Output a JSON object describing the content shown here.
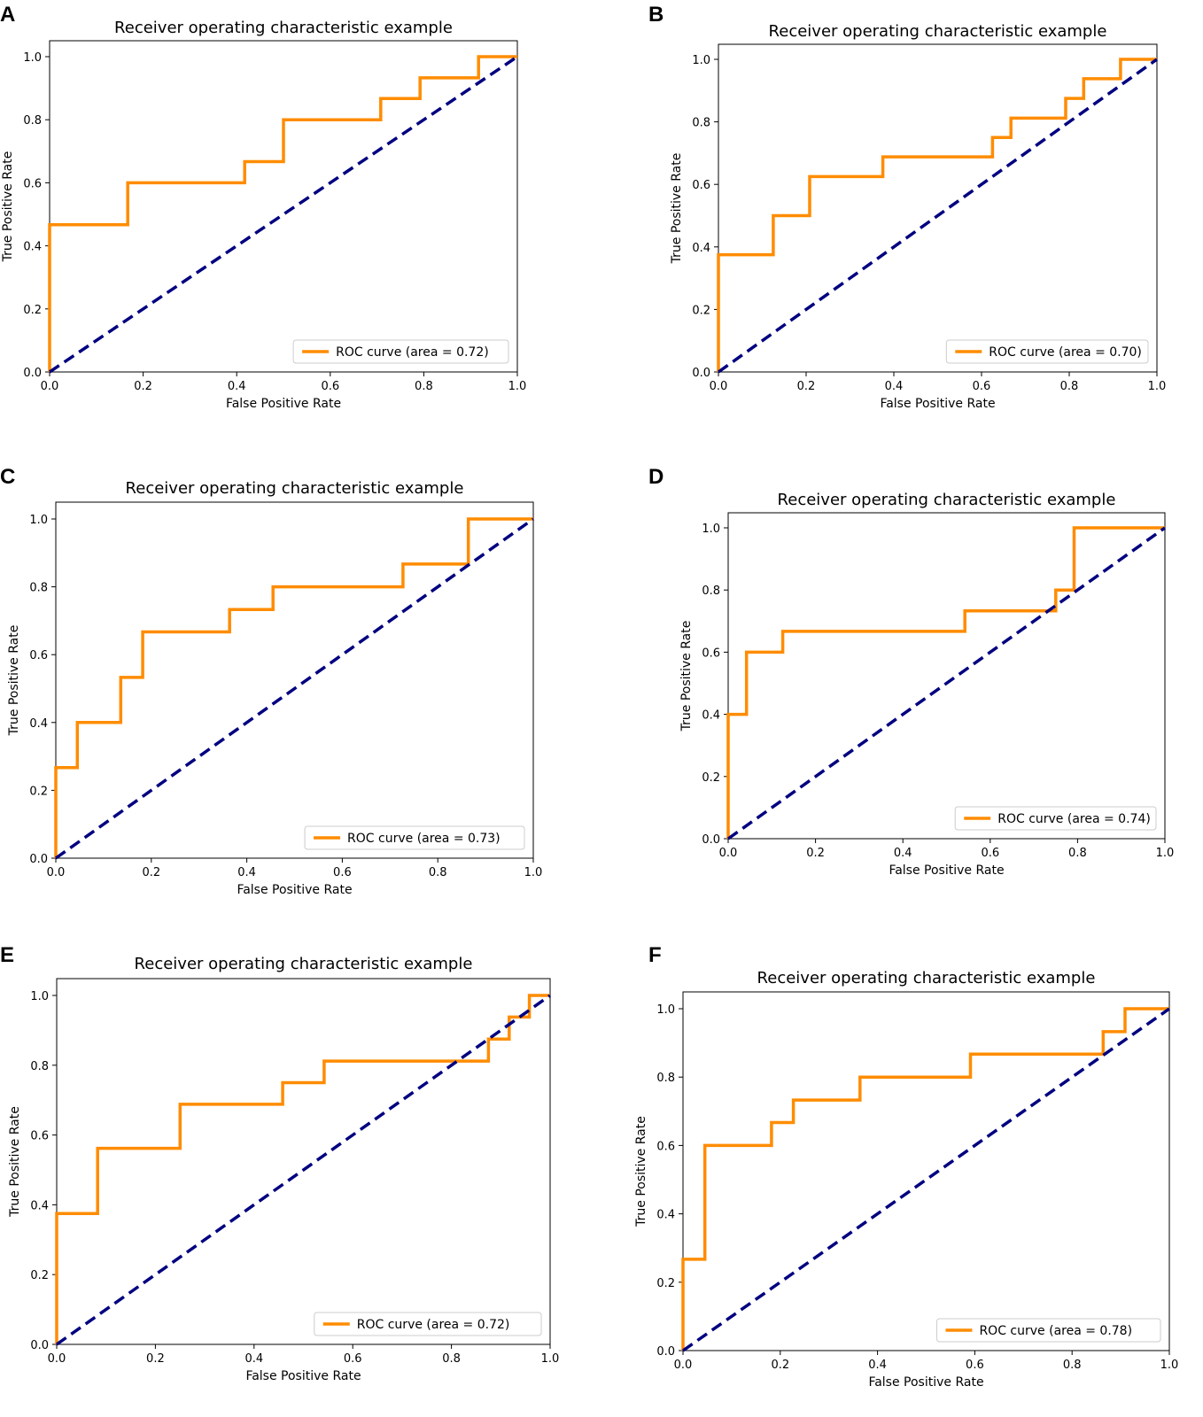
{
  "colors": {
    "roc": "#ff8c00",
    "diagonal": "#000080",
    "axes": "#000000",
    "legend_border": "#cccccc"
  },
  "chart_data": [
    {
      "panel": "A",
      "type": "line",
      "title": "Receiver operating characteristic example",
      "xlabel": "False Positive Rate",
      "ylabel": "True Positive Rate",
      "xlim": [
        0,
        1
      ],
      "ylim": [
        0,
        1.05
      ],
      "xticks": [
        "0.0",
        "0.2",
        "0.4",
        "0.6",
        "0.8",
        "1.0"
      ],
      "yticks": [
        "0.0",
        "0.2",
        "0.4",
        "0.6",
        "0.8",
        "1.0"
      ],
      "legend": "ROC curve (area = 0.72)",
      "legend_loc": "lower-right",
      "series": [
        {
          "name": "ROC curve",
          "x": [
            0,
            0,
            0.167,
            0.167,
            0.417,
            0.417,
            0.5,
            0.5,
            0.708,
            0.708,
            0.792,
            0.792,
            0.917,
            0.917,
            1
          ],
          "y": [
            0,
            0.467,
            0.467,
            0.6,
            0.6,
            0.667,
            0.667,
            0.8,
            0.8,
            0.867,
            0.867,
            0.933,
            0.933,
            1,
            1
          ]
        },
        {
          "name": "chance",
          "x": [
            0,
            1
          ],
          "y": [
            0,
            1
          ],
          "dashed": true
        }
      ]
    },
    {
      "panel": "B",
      "type": "line",
      "title": "Receiver operating characteristic example",
      "xlabel": "False Positive Rate",
      "ylabel": "True Positive Rate",
      "xlim": [
        0,
        1
      ],
      "ylim": [
        0,
        1.05
      ],
      "xticks": [
        "0.0",
        "0.2",
        "0.4",
        "0.6",
        "0.8",
        "1.0"
      ],
      "yticks": [
        "0.0",
        "0.2",
        "0.4",
        "0.6",
        "0.8",
        "1.0"
      ],
      "legend": "ROC curve (area = 0.70)",
      "legend_loc": "lower-right",
      "series": [
        {
          "name": "ROC curve",
          "x": [
            0,
            0,
            0.125,
            0.125,
            0.208,
            0.208,
            0.375,
            0.375,
            0.625,
            0.625,
            0.667,
            0.667,
            0.792,
            0.792,
            0.833,
            0.833,
            0.917,
            0.917,
            1
          ],
          "y": [
            0,
            0.375,
            0.375,
            0.5,
            0.5,
            0.625,
            0.625,
            0.688,
            0.688,
            0.75,
            0.75,
            0.812,
            0.812,
            0.875,
            0.875,
            0.938,
            0.938,
            1,
            1
          ]
        },
        {
          "name": "chance",
          "x": [
            0,
            1
          ],
          "y": [
            0,
            1
          ],
          "dashed": true
        }
      ]
    },
    {
      "panel": "C",
      "type": "line",
      "title": "Receiver operating characteristic example",
      "xlabel": "False Positive Rate",
      "ylabel": "True Positive Rate",
      "xlim": [
        0,
        1
      ],
      "ylim": [
        0,
        1.05
      ],
      "xticks": [
        "0.0",
        "0.2",
        "0.4",
        "0.6",
        "0.8",
        "1.0"
      ],
      "yticks": [
        "0.0",
        "0.2",
        "0.4",
        "0.6",
        "0.8",
        "1.0"
      ],
      "legend": "ROC curve (area = 0.73)",
      "legend_loc": "lower-right",
      "series": [
        {
          "name": "ROC curve",
          "x": [
            0,
            0,
            0.045,
            0.045,
            0.136,
            0.136,
            0.182,
            0.182,
            0.364,
            0.364,
            0.455,
            0.455,
            0.727,
            0.727,
            0.864,
            0.864,
            1
          ],
          "y": [
            0,
            0.267,
            0.267,
            0.4,
            0.4,
            0.533,
            0.533,
            0.667,
            0.667,
            0.733,
            0.733,
            0.8,
            0.8,
            0.867,
            0.867,
            1,
            1
          ]
        },
        {
          "name": "chance",
          "x": [
            0,
            1
          ],
          "y": [
            0,
            1
          ],
          "dashed": true
        }
      ]
    },
    {
      "panel": "D",
      "type": "line",
      "title": "Receiver operating characteristic example",
      "xlabel": "False Positive Rate",
      "ylabel": "True Positive Rate",
      "xlim": [
        0,
        1
      ],
      "ylim": [
        0,
        1.05
      ],
      "xticks": [
        "0.0",
        "0.2",
        "0.4",
        "0.6",
        "0.8",
        "1.0"
      ],
      "yticks": [
        "0.0",
        "0.2",
        "0.4",
        "0.6",
        "0.8",
        "1.0"
      ],
      "legend": "ROC curve (area = 0.74)",
      "legend_loc": "lower-right",
      "series": [
        {
          "name": "ROC curve",
          "x": [
            0,
            0,
            0.042,
            0.042,
            0.125,
            0.125,
            0.542,
            0.542,
            0.75,
            0.75,
            0.792,
            0.792,
            1
          ],
          "y": [
            0,
            0.4,
            0.4,
            0.6,
            0.6,
            0.667,
            0.667,
            0.733,
            0.733,
            0.8,
            0.8,
            1,
            1
          ]
        },
        {
          "name": "chance",
          "x": [
            0,
            1
          ],
          "y": [
            0,
            1
          ],
          "dashed": true
        }
      ]
    },
    {
      "panel": "E",
      "type": "line",
      "title": "Receiver operating characteristic example",
      "xlabel": "False Positive Rate",
      "ylabel": "True Positive Rate",
      "xlim": [
        0,
        1
      ],
      "ylim": [
        0,
        1.05
      ],
      "xticks": [
        "0.0",
        "0.2",
        "0.4",
        "0.6",
        "0.8",
        "1.0"
      ],
      "yticks": [
        "0.0",
        "0.2",
        "0.4",
        "0.6",
        "0.8",
        "1.0"
      ],
      "legend": "ROC curve (area = 0.72)",
      "legend_loc": "lower-right",
      "series": [
        {
          "name": "ROC curve",
          "x": [
            0,
            0,
            0.083,
            0.083,
            0.25,
            0.25,
            0.458,
            0.458,
            0.542,
            0.542,
            0.875,
            0.875,
            0.917,
            0.917,
            0.958,
            0.958,
            1
          ],
          "y": [
            0,
            0.375,
            0.375,
            0.562,
            0.562,
            0.688,
            0.688,
            0.75,
            0.75,
            0.812,
            0.812,
            0.875,
            0.875,
            0.938,
            0.938,
            1,
            1
          ]
        },
        {
          "name": "chance",
          "x": [
            0,
            1
          ],
          "y": [
            0,
            1
          ],
          "dashed": true
        }
      ]
    },
    {
      "panel": "F",
      "type": "line",
      "title": "Receiver operating characteristic example",
      "xlabel": "False Positive Rate",
      "ylabel": "True Positive Rate",
      "xlim": [
        0,
        1
      ],
      "ylim": [
        0,
        1.05
      ],
      "xticks": [
        "0.0",
        "0.2",
        "0.4",
        "0.6",
        "0.8",
        "1.0"
      ],
      "yticks": [
        "0.0",
        "0.2",
        "0.4",
        "0.6",
        "0.8",
        "1.0"
      ],
      "legend": "ROC curve (area = 0.78)",
      "legend_loc": "lower-right",
      "series": [
        {
          "name": "ROC curve",
          "x": [
            0,
            0,
            0.045,
            0.045,
            0.182,
            0.182,
            0.227,
            0.227,
            0.364,
            0.364,
            0.591,
            0.591,
            0.864,
            0.864,
            0.909,
            0.909,
            1
          ],
          "y": [
            0,
            0.267,
            0.267,
            0.6,
            0.6,
            0.667,
            0.667,
            0.733,
            0.733,
            0.8,
            0.8,
            0.867,
            0.867,
            0.933,
            0.933,
            1,
            1
          ]
        },
        {
          "name": "chance",
          "x": [
            0,
            1
          ],
          "y": [
            0,
            1
          ],
          "dashed": true
        }
      ]
    }
  ]
}
